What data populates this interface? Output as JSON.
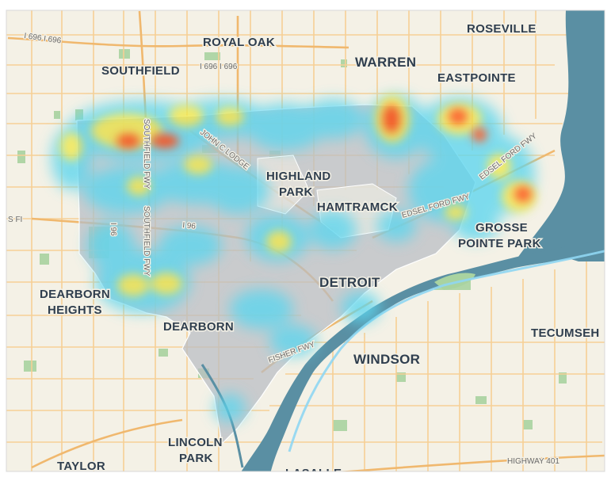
{
  "map": {
    "city_labels": [
      {
        "id": "royal-oak",
        "lines": [
          "ROYAL OAK"
        ]
      },
      {
        "id": "roseville",
        "lines": [
          "ROSEVILLE"
        ]
      },
      {
        "id": "southfield",
        "lines": [
          "SOUTHFIELD"
        ]
      },
      {
        "id": "warren",
        "lines": [
          "WARREN"
        ]
      },
      {
        "id": "eastpointe",
        "lines": [
          "EASTPOINTE"
        ]
      },
      {
        "id": "highland-park",
        "lines": [
          "HIGHLAND",
          "PARK"
        ]
      },
      {
        "id": "hamtramck",
        "lines": [
          "HAMTRAMCK"
        ]
      },
      {
        "id": "grosse-pointe-park",
        "lines": [
          "GROSSE",
          "POINTE PARK"
        ]
      },
      {
        "id": "detroit",
        "lines": [
          "DETROIT"
        ]
      },
      {
        "id": "dearborn-heights",
        "lines": [
          "DEARBORN",
          "HEIGHTS"
        ]
      },
      {
        "id": "dearborn",
        "lines": [
          "DEARBORN"
        ]
      },
      {
        "id": "tecumseh",
        "lines": [
          "TECUMSEH"
        ]
      },
      {
        "id": "windsor",
        "lines": [
          "WINDSOR"
        ]
      },
      {
        "id": "lincoln-park",
        "lines": [
          "LINCOLN",
          "PARK"
        ]
      },
      {
        "id": "taylor",
        "lines": [
          "TAYLOR"
        ]
      },
      {
        "id": "lasalle",
        "lines": [
          "LASALLE"
        ]
      }
    ],
    "road_labels": [
      {
        "id": "i696-west",
        "text": "I 696 I 696"
      },
      {
        "id": "i696-royal-oak",
        "text": "I 696 I 696"
      },
      {
        "id": "southfield-fwy-north",
        "text": "SOUTHFIELD FWY"
      },
      {
        "id": "southfield-fwy-south",
        "text": "SOUTHFIELD FWY"
      },
      {
        "id": "i96",
        "text": "I 96"
      },
      {
        "id": "i96-left",
        "text": "I 96"
      },
      {
        "id": "lodge",
        "text": "JOHN C LODGE"
      },
      {
        "id": "fisher-fwy",
        "text": "FISHER FWY"
      },
      {
        "id": "edsel-ford-fwy",
        "text": "EDSEL FORD FWY"
      },
      {
        "id": "edsel-ford-fwy-east",
        "text": "EDSEL FORD FWY"
      },
      {
        "id": "highway-401",
        "text": "HIGHWAY 401"
      },
      {
        "id": "i94-left",
        "text": "S FI"
      }
    ],
    "colors": {
      "land": "#f4f1e6",
      "water": "#5a8fa3",
      "park": "#a9d3a0",
      "road": "#f6cf95",
      "detroit_fill": "#b9bcc3",
      "heat_low": "#5cd6ef",
      "heat_mid": "#f2e84a",
      "heat_high": "#ff3b00",
      "label": "#2f3e4e"
    }
  }
}
